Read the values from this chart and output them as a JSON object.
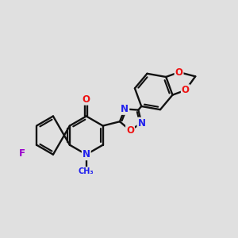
{
  "background_color": "#e0e0e0",
  "bond_color": "#111111",
  "N_color": "#2020ee",
  "O_color": "#ee1010",
  "F_color": "#9900cc",
  "bond_lw": 1.7,
  "label_fs": 8.5,
  "figsize": [
    3.0,
    3.0
  ],
  "dpi": 100,
  "xlim": [
    0,
    10
  ],
  "ylim": [
    0,
    10
  ],
  "BL": 0.82
}
